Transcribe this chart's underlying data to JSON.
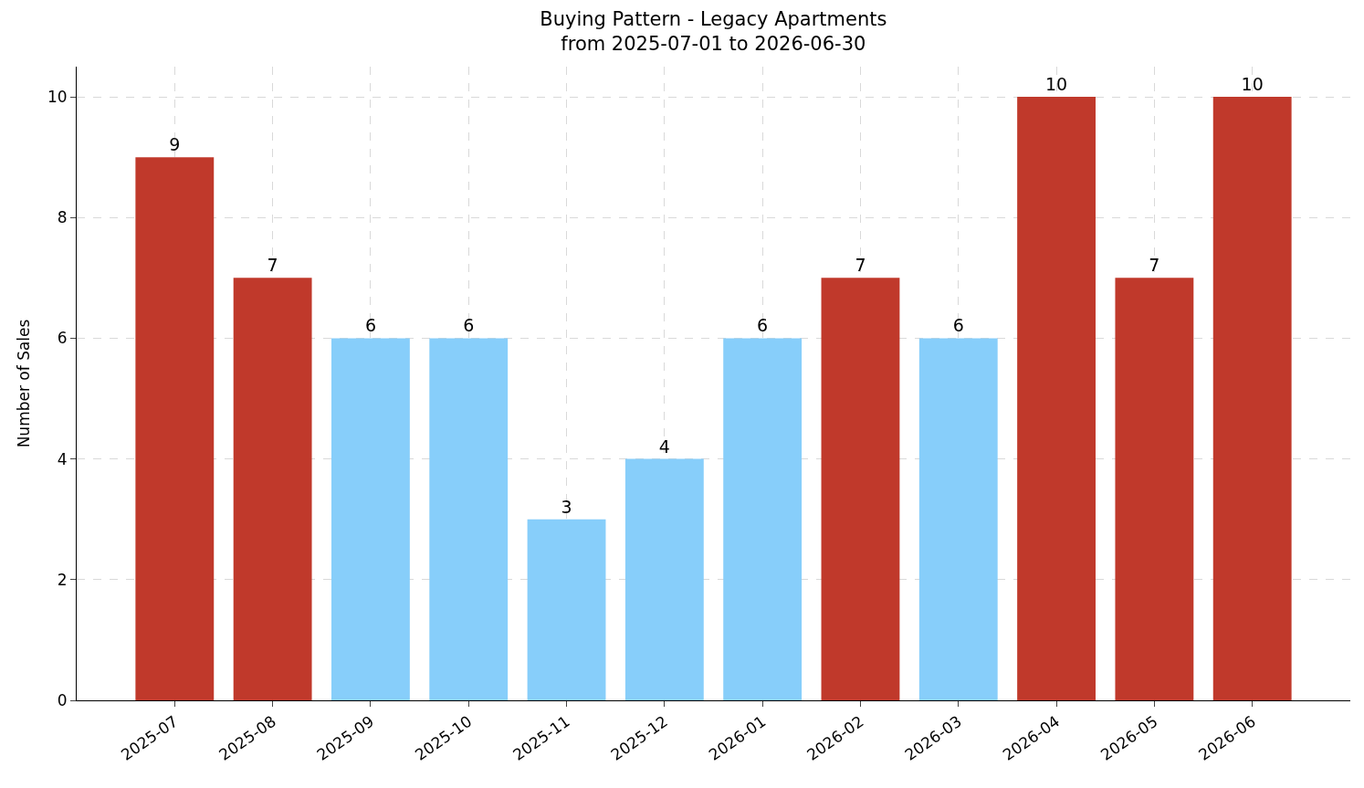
{
  "chart_data": {
    "type": "bar",
    "title": "Buying Pattern - Legacy Apartments",
    "subtitle": "from 2025-07-01 to 2026-06-30",
    "ylabel": "Number of Sales",
    "categories": [
      "2025-07",
      "2025-08",
      "2025-09",
      "2025-10",
      "2025-11",
      "2025-12",
      "2026-01",
      "2026-02",
      "2026-03",
      "2026-04",
      "2026-05",
      "2026-06"
    ],
    "values": [
      9,
      7,
      6,
      6,
      3,
      4,
      6,
      7,
      6,
      10,
      7,
      10
    ],
    "colors": [
      "#c0392b",
      "#c0392b",
      "#87cefa",
      "#87cefa",
      "#87cefa",
      "#87cefa",
      "#87cefa",
      "#c0392b",
      "#87cefa",
      "#c0392b",
      "#c0392b",
      "#c0392b"
    ],
    "ylim": [
      0,
      10.5
    ],
    "yticks": [
      0,
      2,
      4,
      6,
      8,
      10
    ],
    "grid": true,
    "data_labels": true
  }
}
